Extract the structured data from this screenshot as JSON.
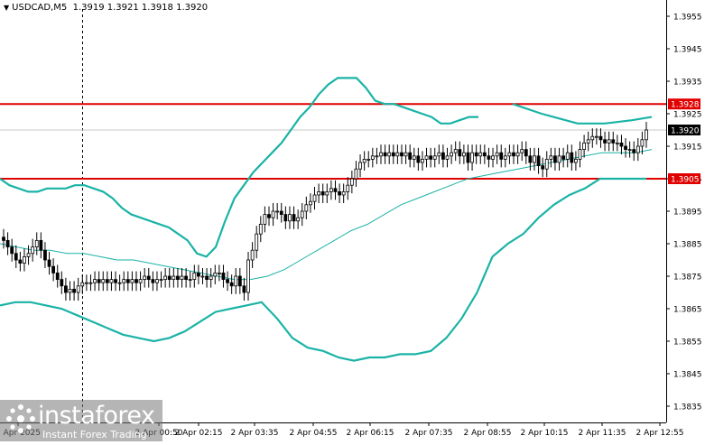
{
  "header": {
    "symbol": "USDCAD,M5",
    "ohlc": "1.3919 1.3921 1.3918 1.3920"
  },
  "branding": {
    "name": "instaforex",
    "tagline": "Instant Forex Trading"
  },
  "colors": {
    "background": "#ffffff",
    "candle": "#000000",
    "bollinger": "#1ab3a6",
    "ma": "#1ab3a6",
    "level_line": "#e00000",
    "level_label_bg": "#e00000",
    "price_label_bg": "#000000"
  },
  "chart_data": {
    "type": "candlestick",
    "grid": false,
    "y_ticks": [
      "1.3955",
      "1.3945",
      "1.3935",
      "1.3925",
      "1.3915",
      "1.3905",
      "1.3895",
      "1.3885",
      "1.3875",
      "1.3865",
      "1.3855",
      "1.3845",
      "1.3835"
    ],
    "x_ticks": [
      "1 Apr 2025",
      "2 Apr 00:50",
      "2 Apr 02:15",
      "2 Apr 03:35",
      "2 Apr 04:55",
      "2 Apr 06:15",
      "2 Apr 07:35",
      "2 Apr 08:55",
      "2 Apr 10:15",
      "2 Apr 11:35",
      "2 Apr 12:55"
    ],
    "horizontal_levels": [
      {
        "value": 1.3928,
        "label": "1.3928"
      },
      {
        "value": 1.3905,
        "label": "1.3905"
      }
    ],
    "current_price": {
      "value": 1.392,
      "label": "1.3920"
    },
    "close": [
      1.3886,
      1.3884,
      1.3882,
      1.388,
      1.3879,
      1.3881,
      1.3882,
      1.3884,
      1.3886,
      1.3883,
      1.388,
      1.3878,
      1.3876,
      1.3874,
      1.3872,
      1.387,
      1.3871,
      1.387,
      1.3872,
      1.3873,
      1.3873,
      1.3873,
      1.3874,
      1.3873,
      1.3874,
      1.3873,
      1.3874,
      1.3873,
      1.3873,
      1.3874,
      1.3873,
      1.3874,
      1.3873,
      1.3874,
      1.3875,
      1.3874,
      1.3873,
      1.3874,
      1.3874,
      1.3875,
      1.3874,
      1.3875,
      1.3874,
      1.3875,
      1.3874,
      1.3874,
      1.3876,
      1.3875,
      1.3875,
      1.3874,
      1.3875,
      1.3876,
      1.3876,
      1.3874,
      1.3873,
      1.3872,
      1.3875,
      1.3872,
      1.387,
      1.388,
      1.3883,
      1.3888,
      1.3891,
      1.3894,
      1.3893,
      1.3895,
      1.3895,
      1.3894,
      1.3892,
      1.3894,
      1.3892,
      1.3893,
      1.3895,
      1.3897,
      1.3898,
      1.39,
      1.3901,
      1.39,
      1.3901,
      1.3902,
      1.3901,
      1.39,
      1.3901,
      1.3903,
      1.3905,
      1.3908,
      1.391,
      1.3911,
      1.3911,
      1.3912,
      1.3912,
      1.3913,
      1.3912,
      1.3913,
      1.3912,
      1.3913,
      1.3912,
      1.3913,
      1.3911,
      1.3912,
      1.391,
      1.3911,
      1.3912,
      1.3911,
      1.3912,
      1.3913,
      1.3911,
      1.3912,
      1.3913,
      1.3914,
      1.3912,
      1.3913,
      1.391,
      1.3913,
      1.3912,
      1.3913,
      1.3912,
      1.3911,
      1.3912,
      1.3913,
      1.3911,
      1.3912,
      1.3913,
      1.3912,
      1.3913,
      1.3914,
      1.3912,
      1.391,
      1.3912,
      1.3909,
      1.3908,
      1.3911,
      1.3912,
      1.391,
      1.3912,
      1.3911,
      1.3913,
      1.391,
      1.3911,
      1.3914,
      1.3916,
      1.3917,
      1.3918,
      1.3918,
      1.3917,
      1.3916,
      1.3917,
      1.3916,
      1.3916,
      1.3915,
      1.3914,
      1.3914,
      1.3913,
      1.3915,
      1.3917,
      1.392
    ],
    "series": [
      {
        "name": "",
        "kind": "bollinger_upper",
        "values": [
          1.3905,
          1.3903,
          1.3902,
          1.3901,
          1.3901,
          1.3902,
          1.3902,
          1.3902,
          1.3903,
          1.3903,
          1.3902,
          1.3901,
          1.3899,
          1.3896,
          1.3894,
          1.3893,
          1.3892,
          1.3891,
          1.389,
          1.3888,
          1.3886,
          1.3882,
          1.3881,
          1.3884,
          1.3892,
          1.3899,
          1.3903,
          1.3907,
          1.391,
          1.3913,
          1.3916,
          1.392,
          1.3924,
          1.3927,
          1.3931,
          1.3934,
          1.3936,
          1.3936,
          1.3936,
          1.3933,
          1.3929,
          1.3928,
          1.3928,
          1.3927,
          1.3926,
          1.3925,
          1.3924,
          1.3922,
          1.3922,
          1.3923,
          1.3924,
          1.3924
        ]
      },
      {
        "name": "",
        "kind": "moving_average",
        "values": [
          1.3885,
          1.3884,
          1.3883,
          1.3883,
          1.3882,
          1.3882,
          1.3881,
          1.388,
          1.388,
          1.3879,
          1.3878,
          1.3877,
          1.3876,
          1.3875,
          1.3874,
          1.3874,
          1.3875,
          1.3877,
          1.388,
          1.3883,
          1.3886,
          1.3889,
          1.3891,
          1.3894,
          1.3897,
          1.3899,
          1.3901,
          1.3903,
          1.3905,
          1.3906,
          1.3907,
          1.3908,
          1.3909,
          1.391,
          1.3911,
          1.3912,
          1.3913,
          1.3913,
          1.3913,
          1.3914
        ]
      },
      {
        "name": "",
        "kind": "bollinger_lower",
        "values": [
          1.3866,
          1.3867,
          1.3867,
          1.3866,
          1.3865,
          1.3863,
          1.3861,
          1.3859,
          1.3857,
          1.3856,
          1.3855,
          1.3856,
          1.3858,
          1.3861,
          1.3864,
          1.3865,
          1.3866,
          1.3867,
          1.3862,
          1.3856,
          1.3853,
          1.3852,
          1.385,
          1.3849,
          1.385,
          1.385,
          1.3851,
          1.3851,
          1.3852,
          1.3856,
          1.3862,
          1.387,
          1.3881,
          1.3885,
          1.3888,
          1.3893,
          1.3897,
          1.39,
          1.3902,
          1.3905,
          1.3905,
          1.3905,
          1.3905
        ]
      }
    ]
  }
}
